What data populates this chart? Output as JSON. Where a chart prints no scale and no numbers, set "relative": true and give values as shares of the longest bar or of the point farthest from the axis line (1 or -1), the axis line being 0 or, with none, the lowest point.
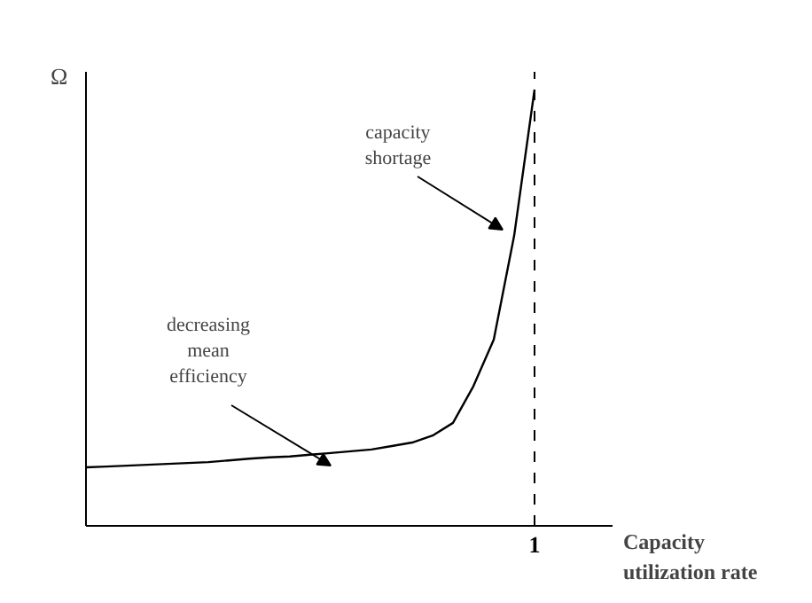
{
  "chart_data": {
    "type": "line",
    "relative": true,
    "ylabel": "Ω",
    "xlabel": "Capacity\nutilization rate",
    "categories": [
      null,
      null,
      null,
      null,
      null,
      null,
      null,
      null,
      null,
      null,
      null,
      null,
      null,
      null,
      null,
      null,
      null,
      null,
      null,
      null,
      null,
      null,
      null
    ],
    "series": [
      {
        "color": "#000000",
        "values": [
          0.134,
          0.136,
          0.138,
          0.14,
          0.142,
          0.144,
          0.146,
          0.15,
          0.154,
          0.157,
          0.159,
          0.163,
          0.167,
          0.171,
          0.175,
          0.183,
          0.191,
          0.207,
          0.236,
          0.32,
          0.427,
          0.665,
          1.0
        ]
      }
    ],
    "ref_lines": [
      {
        "axis": "x",
        "value": "1",
        "line_style": "dashed",
        "color": "#000000"
      }
    ],
    "annotations": [
      "decreasing\nmean\nefficiency",
      "capacity\nshortage"
    ],
    "grid": false,
    "marker": "none",
    "line_style": "solid"
  }
}
